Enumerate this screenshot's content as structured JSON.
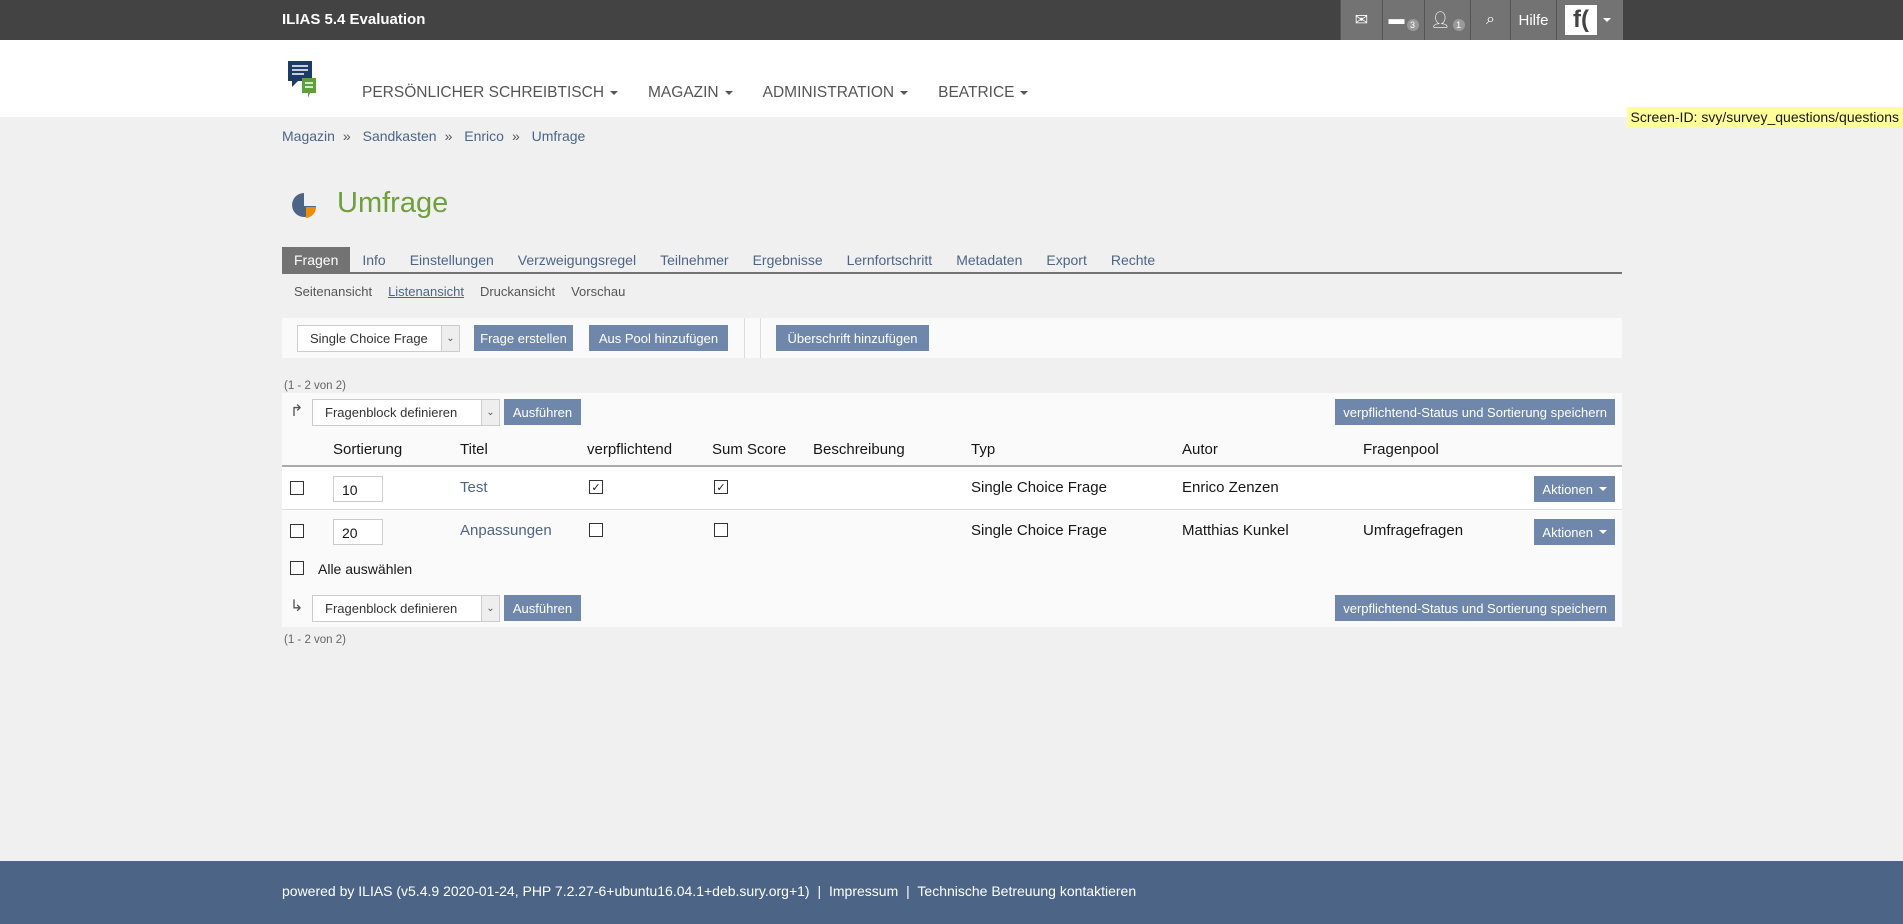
{
  "topbar": {
    "title": "ILIAS 5.4 Evaluation",
    "mail_icon": "mail-icon",
    "chat_badge": "3",
    "contacts_badge": "1",
    "help": "Hilfe",
    "avatar_letter": "f("
  },
  "nav": [
    {
      "label": "PERSÖNLICHER SCHREIBTISCH"
    },
    {
      "label": "MAGAZIN"
    },
    {
      "label": "ADMINISTRATION"
    },
    {
      "label": "BEATRICE"
    }
  ],
  "screen_id": "Screen-ID: svy/survey_questions/questions",
  "breadcrumb": [
    "Magazin",
    "Sandkasten",
    "Enrico",
    "Umfrage"
  ],
  "breadcrumb_sep": "»",
  "title": "Umfrage",
  "tabs": [
    "Fragen",
    "Info",
    "Einstellungen",
    "Verzweigungsregel",
    "Teilnehmer",
    "Ergebnisse",
    "Lernfortschritt",
    "Metadaten",
    "Export",
    "Rechte"
  ],
  "subtabs": [
    "Seitenansicht",
    "Listenansicht",
    "Druckansicht",
    "Vorschau"
  ],
  "toolbar": {
    "type_select": "Single Choice Frage",
    "create": "Frage erstellen",
    "from_pool": "Aus Pool hinzufügen",
    "heading": "Überschrift hinzufügen"
  },
  "table": {
    "count": "(1 - 2 von 2)",
    "action_select": "Fragenblock definieren",
    "execute": "Ausführen",
    "save": "verpflichtend-Status und Sortierung speichern",
    "columns": [
      "Sortierung",
      "Titel",
      "verpflichtend",
      "Sum Score",
      "Beschreibung",
      "Typ",
      "Autor",
      "Fragenpool"
    ],
    "rows": [
      {
        "order": "10",
        "title": "Test",
        "mandatory": true,
        "sum_score": true,
        "description": "",
        "type": "Single Choice Frage",
        "author": "Enrico Zenzen",
        "pool": "",
        "actions": "Aktionen"
      },
      {
        "order": "20",
        "title": "Anpassungen",
        "mandatory": false,
        "sum_score": false,
        "description": "",
        "type": "Single Choice Frage",
        "author": "Matthias Kunkel",
        "pool": "Umfragefragen",
        "actions": "Aktionen"
      }
    ],
    "select_all": "Alle auswählen"
  },
  "footer": {
    "powered": "powered by ILIAS (v5.4.9 2020-01-24, PHP 7.2.27-6+ubuntu16.04.1+deb.sury.org+1)",
    "sep": "|",
    "impressum": "Impressum",
    "contact": "Technische Betreuung kontaktieren"
  },
  "colors": {
    "accent": "#6f87aa",
    "title_green": "#6ea03c",
    "footer": "#4c6586",
    "topbar": "#434343"
  }
}
